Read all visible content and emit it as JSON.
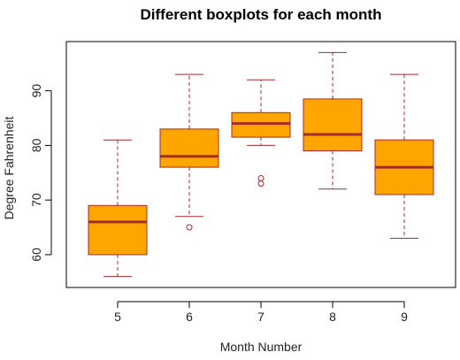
{
  "chart_data": {
    "type": "boxplot",
    "title": "Different boxplots for each month",
    "xlabel": "Month Number",
    "ylabel": "Degree Fahrenheit",
    "categories": [
      "5",
      "6",
      "7",
      "8",
      "9"
    ],
    "ylim": [
      54,
      99
    ],
    "yticks": [
      60,
      70,
      80,
      90
    ],
    "grid": false,
    "fill_color": "#FFA500",
    "border_color": "#A52A2A",
    "boxes": [
      {
        "category": "5",
        "whisker_low": 56,
        "q1": 60,
        "median": 66,
        "q3": 69,
        "whisker_high": 81,
        "outliers": []
      },
      {
        "category": "6",
        "whisker_low": 67,
        "q1": 76,
        "median": 78,
        "q3": 83,
        "whisker_high": 93,
        "outliers": [
          65
        ]
      },
      {
        "category": "7",
        "whisker_low": 80,
        "q1": 81.5,
        "median": 84,
        "q3": 86,
        "whisker_high": 92,
        "outliers": [
          73,
          74
        ]
      },
      {
        "category": "8",
        "whisker_low": 72,
        "q1": 79,
        "median": 82,
        "q3": 88.5,
        "whisker_high": 97,
        "outliers": []
      },
      {
        "category": "9",
        "whisker_low": 63,
        "q1": 71,
        "median": 76,
        "q3": 81,
        "whisker_high": 93,
        "outliers": []
      }
    ]
  }
}
